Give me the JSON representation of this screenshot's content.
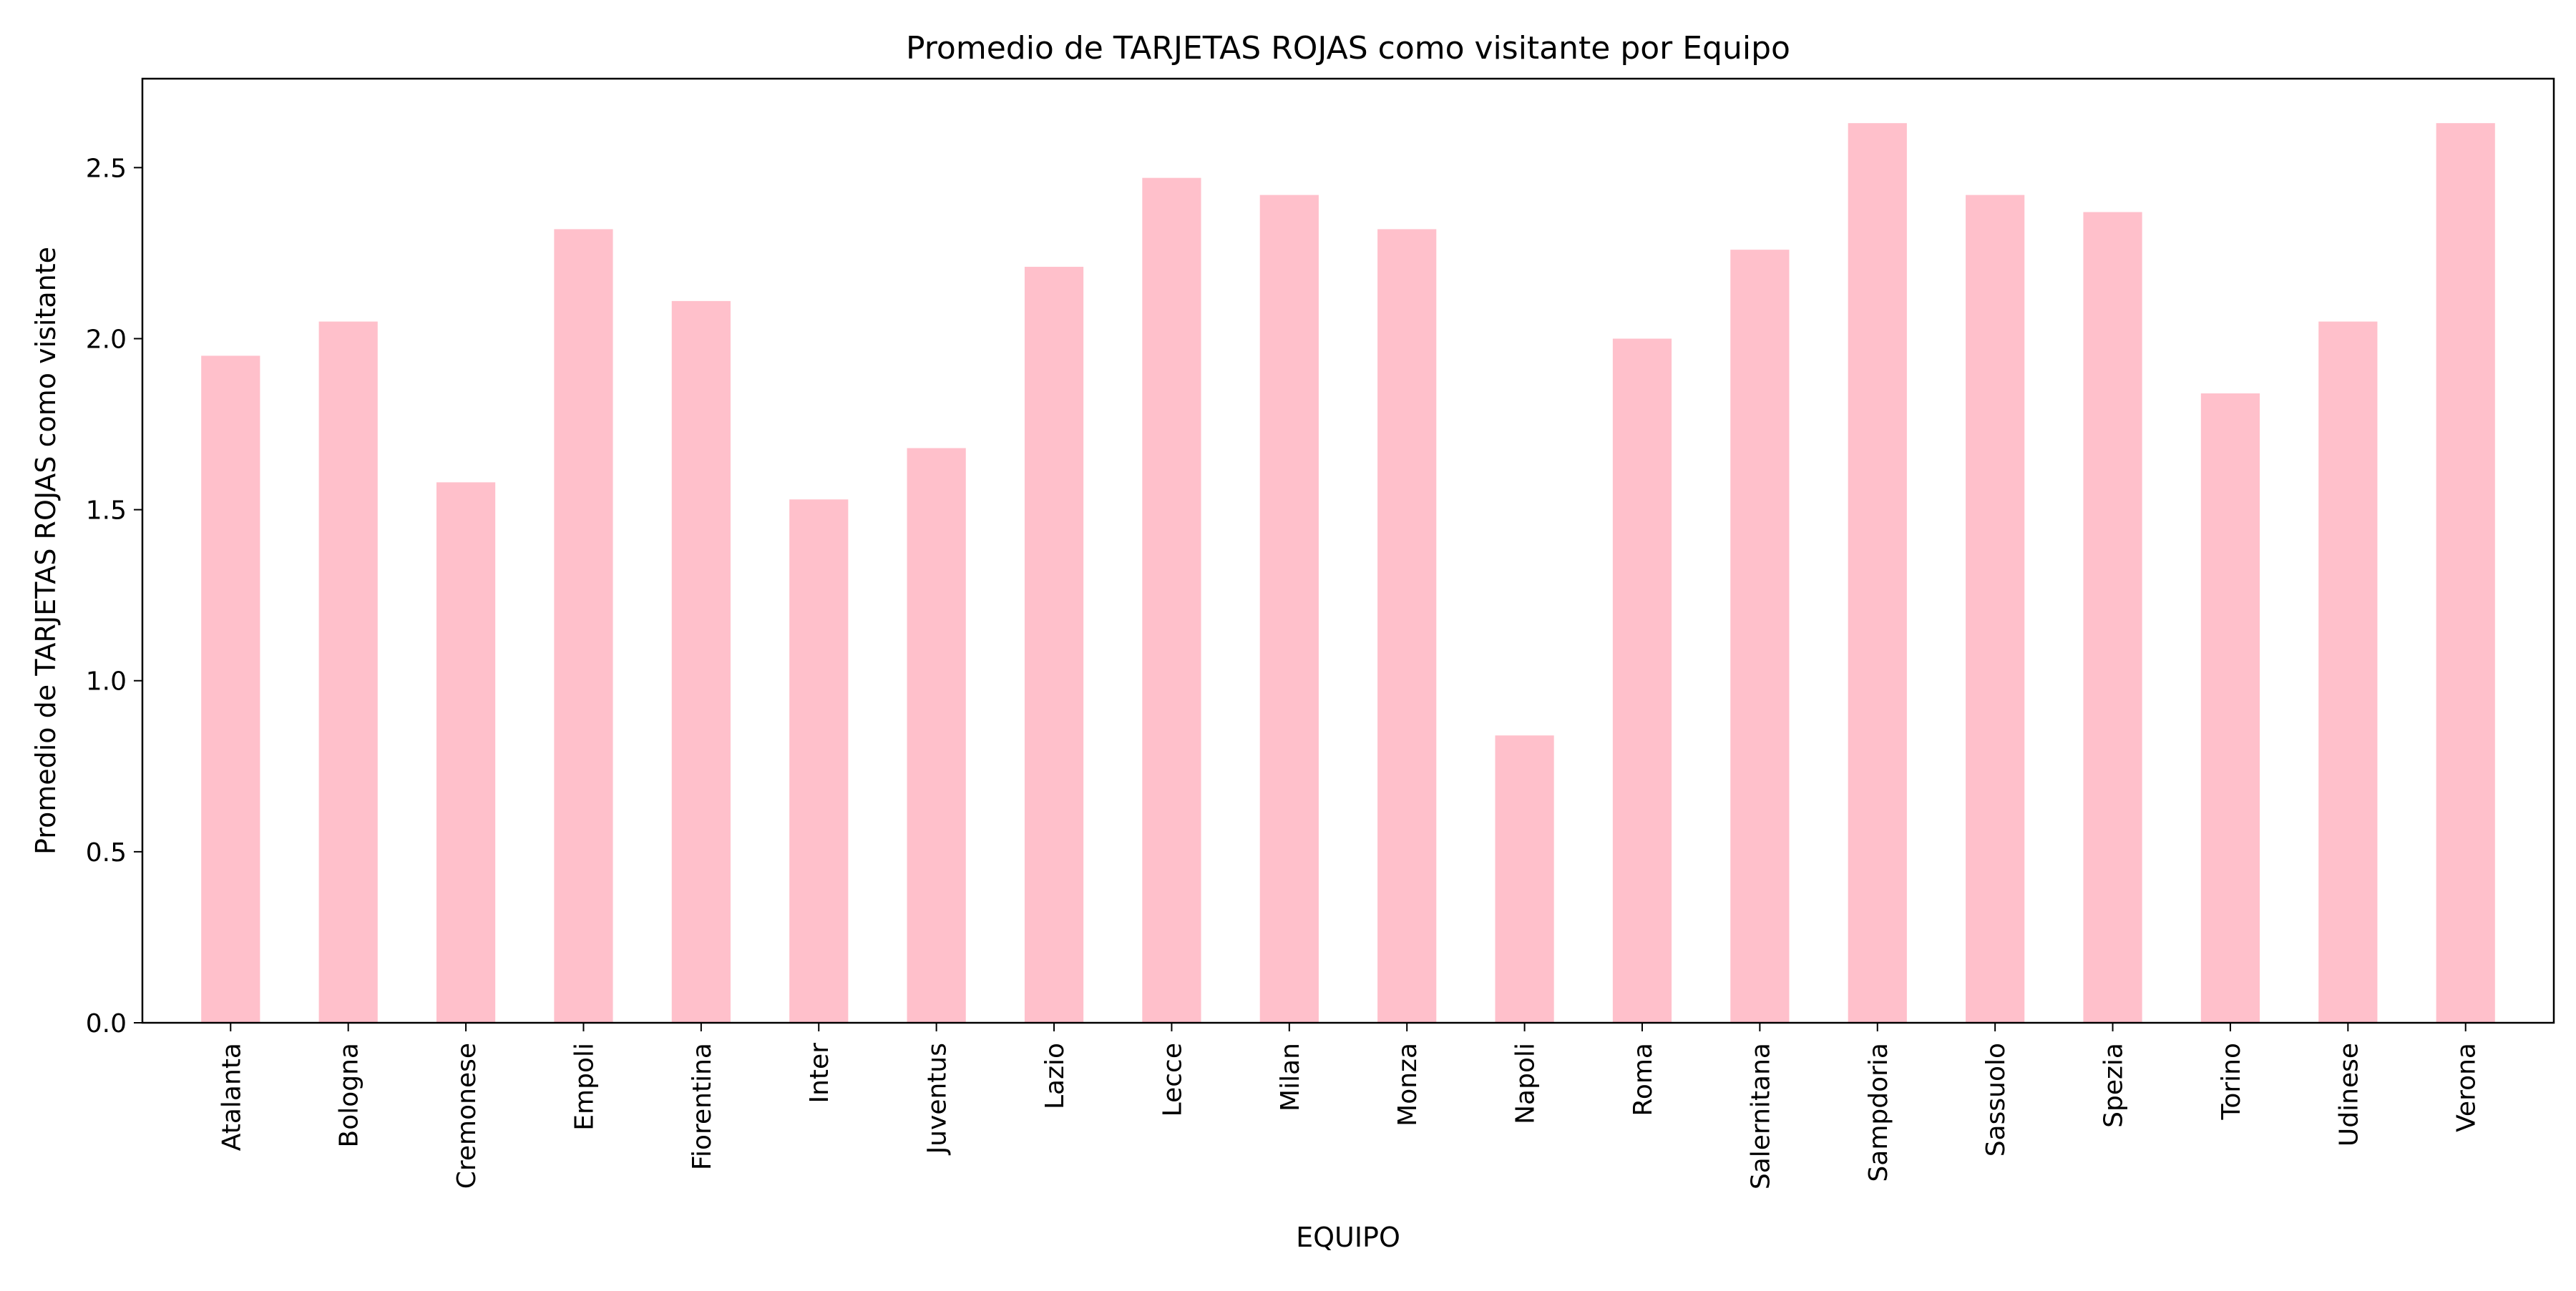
{
  "chart_data": {
    "type": "bar",
    "title": "Promedio de TARJETAS ROJAS como visitante por Equipo",
    "xlabel": "EQUIPO",
    "ylabel": "Promedio de TARJETAS ROJAS como visitante",
    "categories": [
      "Atalanta",
      "Bologna",
      "Cremonese",
      "Empoli",
      "Fiorentina",
      "Inter",
      "Juventus",
      "Lazio",
      "Lecce",
      "Milan",
      "Monza",
      "Napoli",
      "Roma",
      "Salernitana",
      "Sampdoria",
      "Sassuolo",
      "Spezia",
      "Torino",
      "Udinese",
      "Verona"
    ],
    "values": [
      1.95,
      2.05,
      1.58,
      2.32,
      2.11,
      1.53,
      1.68,
      2.21,
      2.47,
      2.42,
      2.32,
      0.84,
      2.0,
      2.26,
      2.63,
      2.42,
      2.37,
      1.84,
      2.05,
      2.63
    ],
    "ylim": [
      0,
      2.76
    ],
    "yticks": [
      0.0,
      0.5,
      1.0,
      1.5,
      2.0,
      2.5
    ],
    "ytick_labels": [
      "0.0",
      "0.5",
      "1.0",
      "1.5",
      "2.0",
      "2.5"
    ],
    "bar_color": "#ffc0cb",
    "grid": false,
    "legend": "none"
  }
}
